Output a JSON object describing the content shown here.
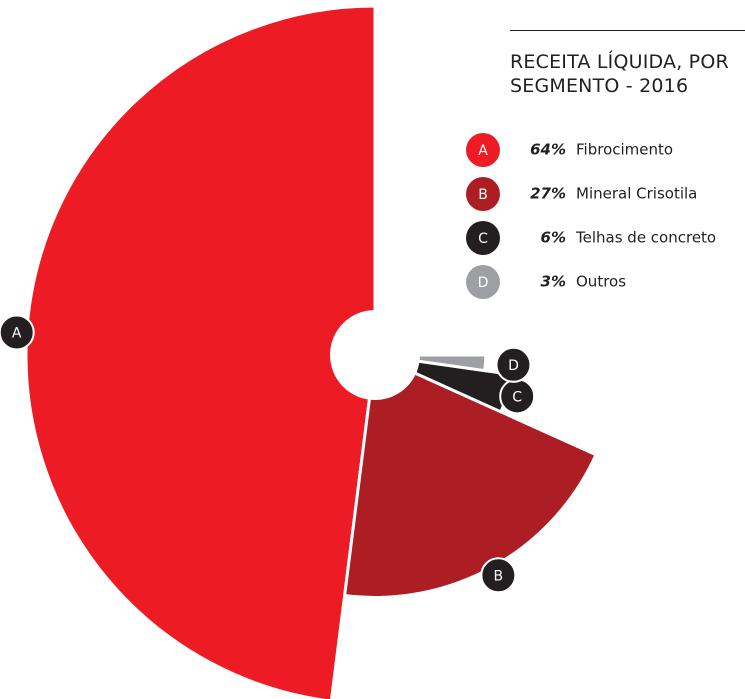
{
  "chart_data": {
    "type": "pie",
    "title": "RECEITA LÍQUIDA, POR SEGMENTO - 2016",
    "markers": [
      "A",
      "B",
      "C",
      "D"
    ],
    "categories": [
      "Fibrocimento",
      "Mineral Crisotila",
      "Telhas de concreto",
      "Outros"
    ],
    "values": [
      64,
      27,
      6,
      3
    ],
    "value_labels": [
      "64%",
      "27%",
      "6%",
      "3%"
    ],
    "colors": [
      "#ed1c24",
      "#ac1e23",
      "#231f20",
      "#9d9fa2"
    ]
  }
}
